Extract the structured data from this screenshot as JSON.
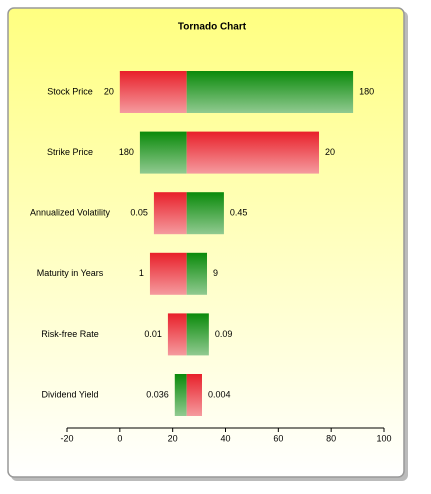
{
  "chart_data": {
    "type": "tornado",
    "title": "Tornado Chart",
    "categories": [
      "Stock Price",
      "Strike Price",
      "Annualized Volatility",
      "Maturity in Years",
      "Risk-free Rate",
      "Dividend Yield"
    ],
    "base": 25.3,
    "series": [
      {
        "values": [
          0,
          7.6,
          12.9,
          11.4,
          18.2,
          20.8
        ],
        "input_labels": [
          "20",
          "180",
          "0.05",
          "1",
          "0.01",
          "0.036"
        ],
        "colors": [
          "#e8202a",
          "#0a8a0a",
          "#e8202a",
          "#e8202a",
          "#e8202a",
          "#0a8a0a"
        ]
      },
      {
        "values": [
          88.3,
          75.4,
          39.4,
          33,
          33.7,
          31.1
        ],
        "input_labels": [
          "180",
          "20",
          "0.45",
          "9",
          "0.09",
          "0.004"
        ],
        "colors": [
          "#0a8a0a",
          "#e8202a",
          "#0a8a0a",
          "#0a8a0a",
          "#0a8a0a",
          "#e8202a"
        ]
      }
    ],
    "xlim": [
      -20,
      100
    ],
    "xticks": [
      -20,
      0,
      20,
      40,
      60,
      80,
      100
    ]
  }
}
